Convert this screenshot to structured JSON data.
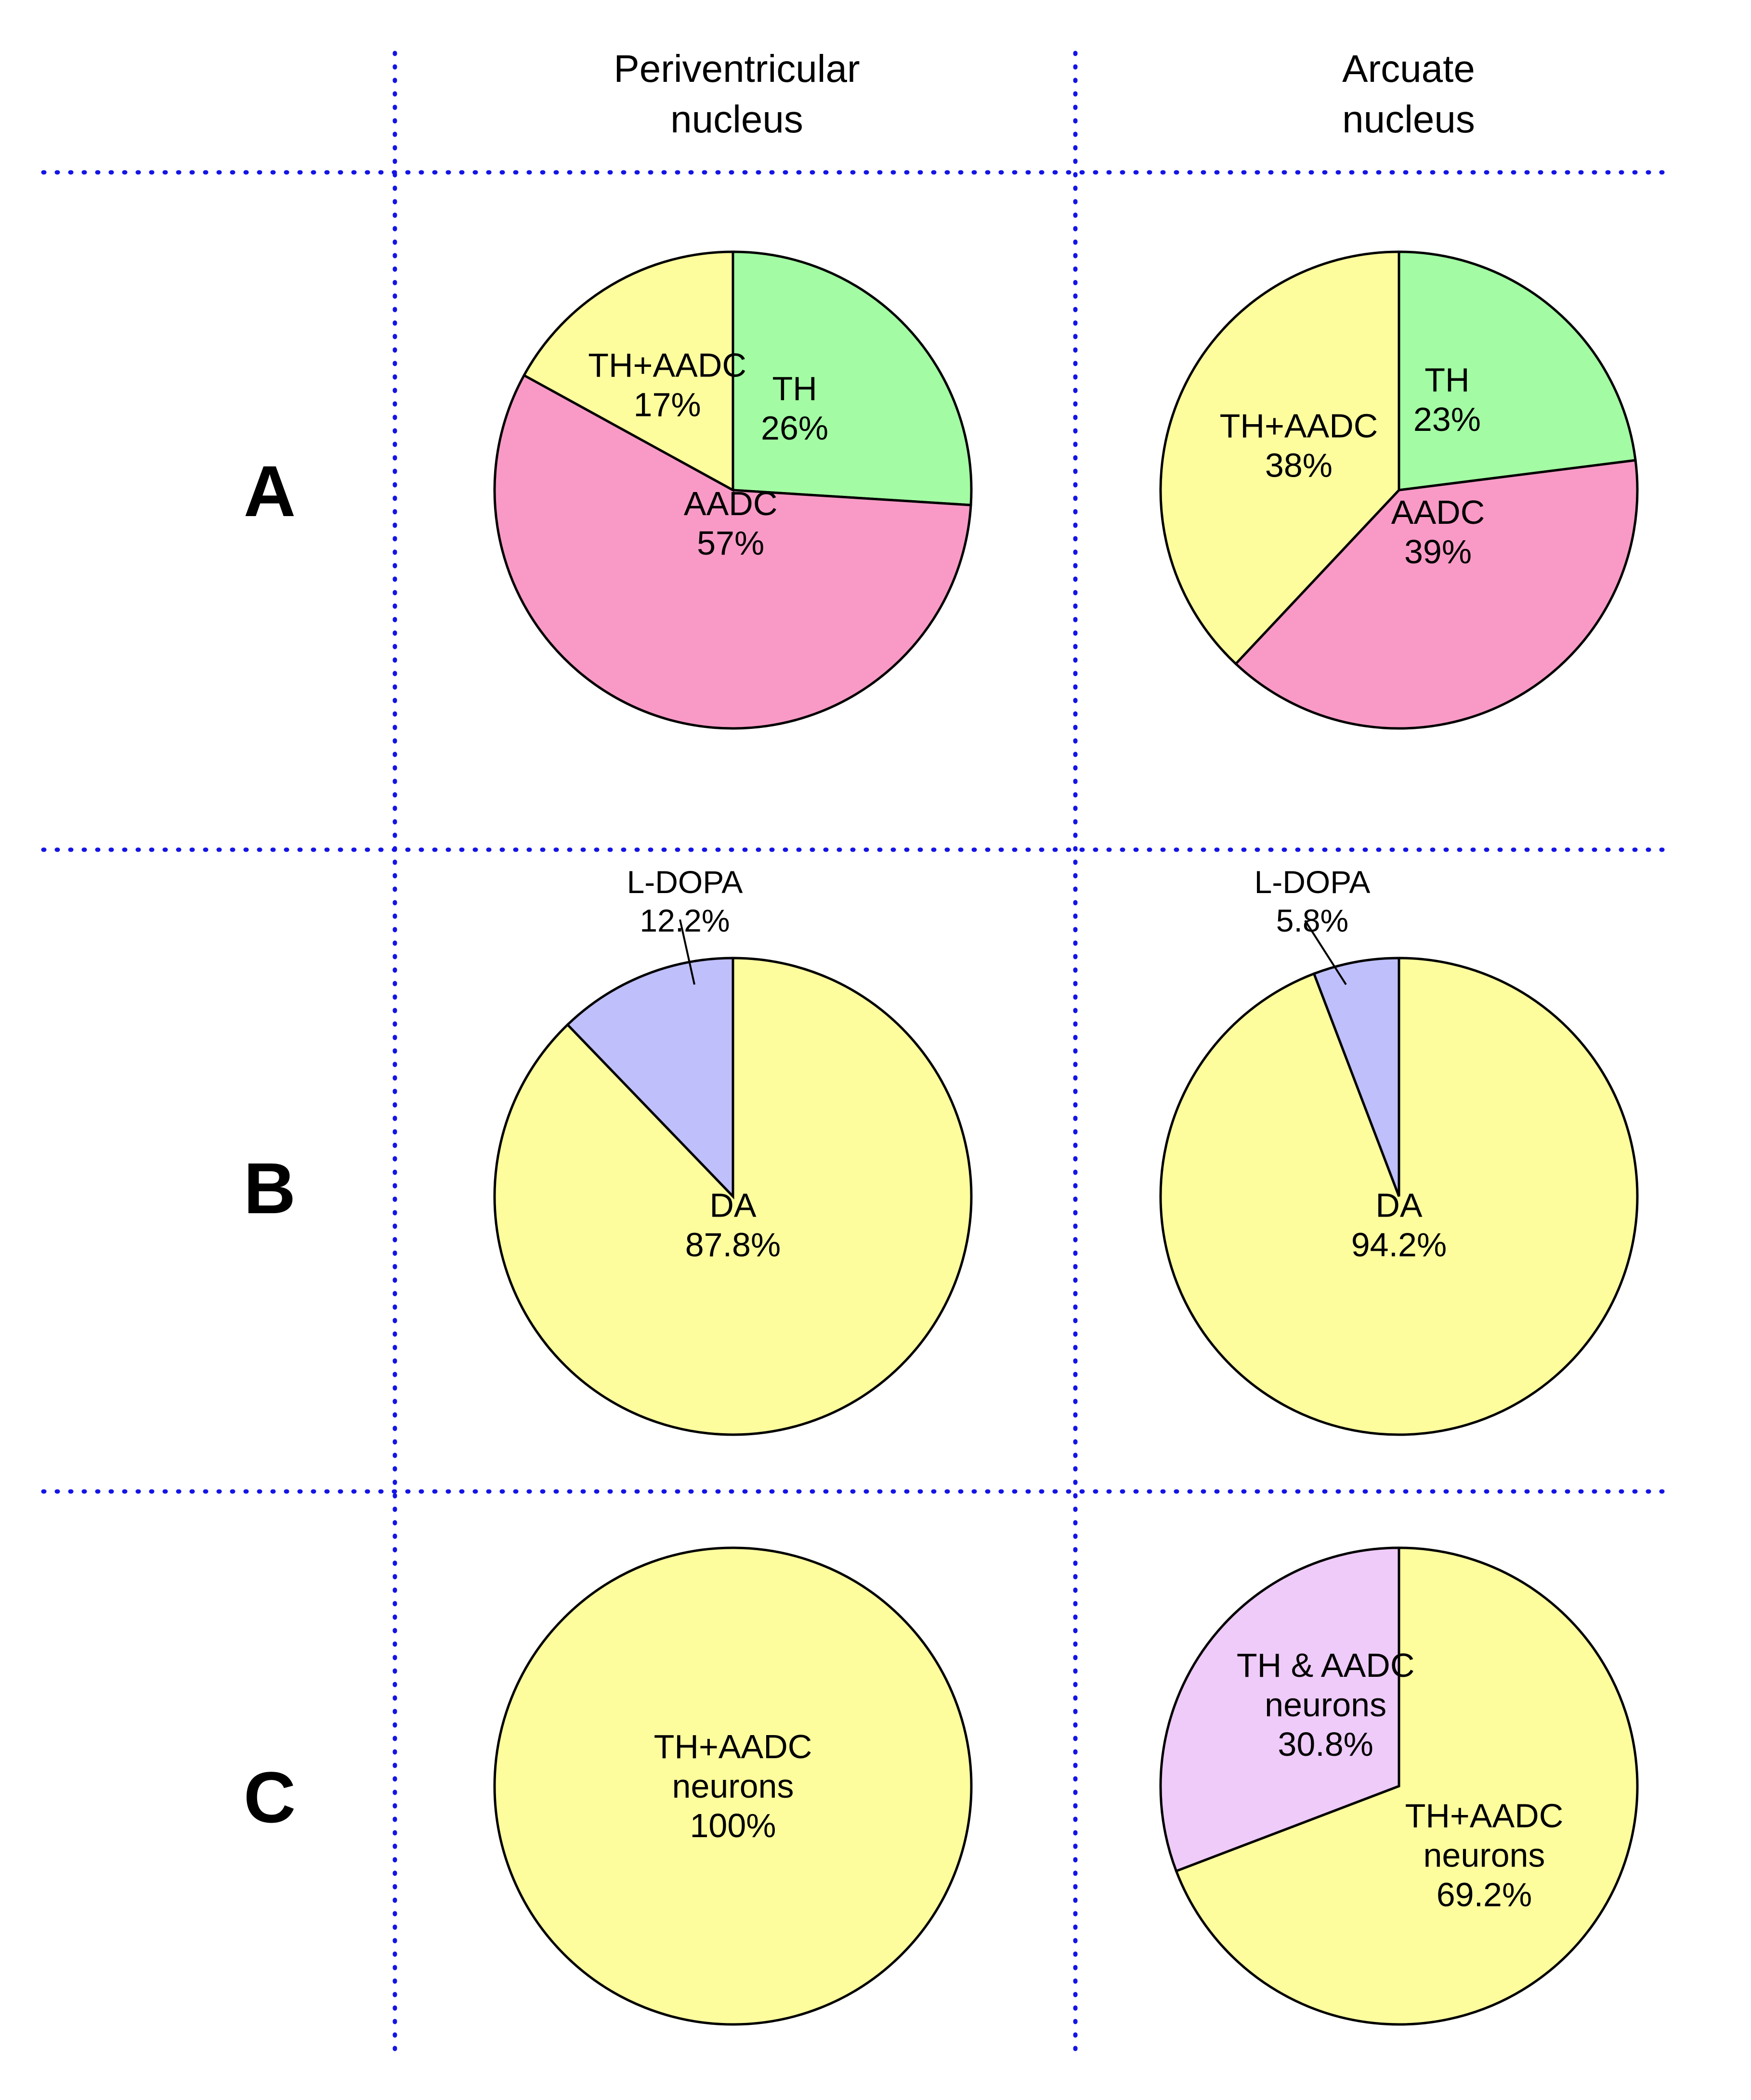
{
  "columns": [
    "Periventricular nucleus",
    "Arcuate nucleus"
  ],
  "rows": [
    "A",
    "B",
    "C"
  ],
  "colors": {
    "TH": "#a3fca3",
    "AADC": "#f99ac6",
    "TH+AADC": "#fdfd9e",
    "L-DOPA": "#bfbffb",
    "DA": "#fdfd9e",
    "TH & AADC neurons": "#efcbf9",
    "TH+AADC neurons": "#fdfd9e",
    "grid": "#1414e6"
  },
  "chart_data": [
    {
      "type": "pie",
      "row": "A",
      "column": "Periventricular nucleus",
      "slices": [
        {
          "label": "TH",
          "value": 26,
          "display": "26%"
        },
        {
          "label": "AADC",
          "value": 57,
          "display": "57%"
        },
        {
          "label": "TH+AADC",
          "value": 17,
          "display": "17%"
        }
      ]
    },
    {
      "type": "pie",
      "row": "A",
      "column": "Arcuate nucleus",
      "slices": [
        {
          "label": "TH",
          "value": 23,
          "display": "23%"
        },
        {
          "label": "AADC",
          "value": 39,
          "display": "39%"
        },
        {
          "label": "TH+AADC",
          "value": 38,
          "display": "38%"
        }
      ]
    },
    {
      "type": "pie",
      "row": "B",
      "column": "Periventricular nucleus",
      "slices": [
        {
          "label": "DA",
          "value": 87.8,
          "display": "87.8%"
        },
        {
          "label": "L-DOPA",
          "value": 12.2,
          "display": "12.2%"
        }
      ]
    },
    {
      "type": "pie",
      "row": "B",
      "column": "Arcuate nucleus",
      "slices": [
        {
          "label": "DA",
          "value": 94.2,
          "display": "94.2%"
        },
        {
          "label": "L-DOPA",
          "value": 5.8,
          "display": "5.8%"
        }
      ]
    },
    {
      "type": "pie",
      "row": "C",
      "column": "Periventricular nucleus",
      "slices": [
        {
          "label": "TH+AADC neurons",
          "value": 100,
          "display": "100%"
        }
      ]
    },
    {
      "type": "pie",
      "row": "C",
      "column": "Arcuate nucleus",
      "slices": [
        {
          "label": "TH+AADC neurons",
          "value": 69.2,
          "display": "69.2%"
        },
        {
          "label": "TH & AADC neurons",
          "value": 30.8,
          "display": "30.8%"
        }
      ]
    }
  ]
}
